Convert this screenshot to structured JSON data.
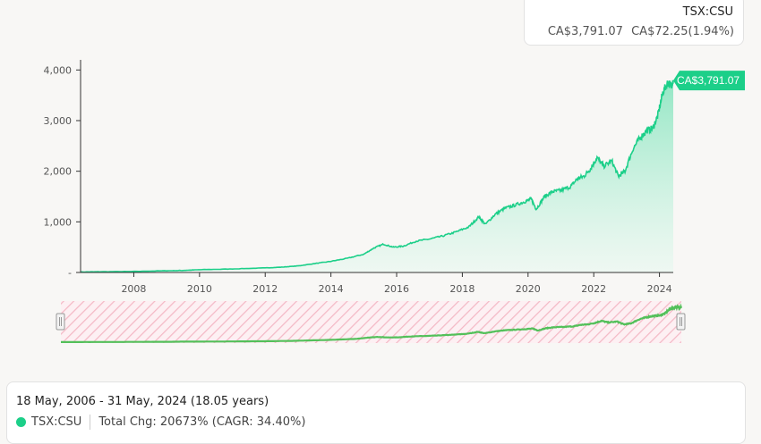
{
  "ticker": {
    "symbol": "TSX:CSU",
    "price": "CA$3,791.07",
    "change": "CA$72.25(1.94%)"
  },
  "summary": {
    "date_range": "18 May, 2006 - 31 May, 2024 (18.05 years)",
    "series_label": "TSX:CSU",
    "total_change": "Total Chg: 20673% (CAGR: 34.40%)"
  },
  "colors": {
    "line": "#1ccf89",
    "area": "#a8ecd0",
    "navigator_line": "#53c05a",
    "navigator_hatch": "#f4b9c6",
    "label_bg": "#1ccf89"
  },
  "chart_data": {
    "type": "area",
    "x_tick_labels": [
      "2008",
      "2010",
      "2012",
      "2014",
      "2016",
      "2018",
      "2020",
      "2022",
      "2024"
    ],
    "y_tick_labels": [
      "-",
      "1,000",
      "2,000",
      "3,000",
      "4,000"
    ],
    "y_ticks": [
      0,
      1000,
      2000,
      3000,
      4000
    ],
    "xlim": [
      2006.38,
      2024.42
    ],
    "ylim": [
      0,
      4200
    ],
    "last_value_label": "CA$3,791.07",
    "series": [
      {
        "x": [
          2006.38,
          2007.0,
          2008.0,
          2009.0,
          2009.5,
          2010.0,
          2011.0,
          2012.0,
          2012.5,
          2013.0,
          2013.5,
          2014.0,
          2014.5,
          2015.0,
          2015.3,
          2015.6,
          2015.9,
          2016.2,
          2016.6,
          2017.0,
          2017.4,
          2017.8,
          2018.2,
          2018.5,
          2018.7,
          2019.0,
          2019.3,
          2019.6,
          2019.9,
          2020.1,
          2020.25,
          2020.5,
          2020.75,
          2021.0,
          2021.3,
          2021.5,
          2021.7,
          2021.9,
          2022.1,
          2022.3,
          2022.55,
          2022.75,
          2022.95,
          2023.2,
          2023.4,
          2023.6,
          2023.8,
          2023.95,
          2024.1,
          2024.25,
          2024.35,
          2024.42
        ],
        "y": [
          10,
          14,
          20,
          35,
          40,
          55,
          70,
          90,
          105,
          130,
          175,
          220,
          280,
          360,
          480,
          560,
          500,
          520,
          620,
          660,
          720,
          800,
          900,
          1100,
          950,
          1150,
          1270,
          1330,
          1400,
          1450,
          1250,
          1500,
          1600,
          1620,
          1700,
          1850,
          1900,
          2050,
          2270,
          2100,
          2200,
          1900,
          2000,
          2450,
          2650,
          2800,
          2850,
          3100,
          3550,
          3750,
          3700,
          3791.07
        ]
      }
    ]
  }
}
